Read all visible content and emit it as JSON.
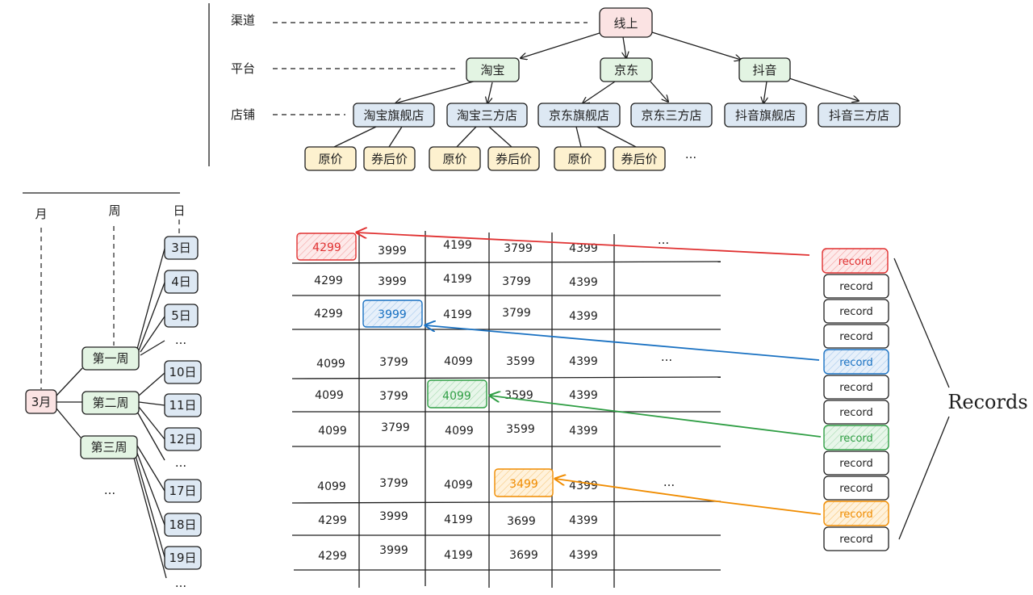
{
  "colors": {
    "root_fill": "#fbe3e3",
    "platform_fill": "#e3f4e3",
    "store_fill": "#dde8f3",
    "price_fill": "#fdf1cf",
    "month_fill": "#fbe3e3",
    "week_fill": "#e3f4e3",
    "day_fill": "#dde8f3",
    "red": "#e03131",
    "blue": "#1971c2",
    "green": "#2f9e44",
    "orange": "#f08c00",
    "ink": "#1e1e1e"
  },
  "top_tree": {
    "levels": [
      "渠道",
      "平台",
      "店铺"
    ],
    "root": "线上",
    "platforms": [
      "淘宝",
      "京东",
      "抖音"
    ],
    "stores": [
      "淘宝旗舰店",
      "淘宝三方店",
      "京东旗舰店",
      "京东三方店",
      "抖音旗舰店",
      "抖音三方店"
    ],
    "prices": [
      "原价",
      "券后价",
      "原价",
      "券后价",
      "原价",
      "券后价"
    ],
    "more": "..."
  },
  "time_tree": {
    "levels": [
      "月",
      "周",
      "日"
    ],
    "month": "3月",
    "weeks": [
      "第一周",
      "第二周",
      "第三周"
    ],
    "days": [
      "3日",
      "4日",
      "5日",
      "10日",
      "11日",
      "12日",
      "17日",
      "18日",
      "19日"
    ],
    "ellipsis": "...",
    "more": "..."
  },
  "grid": {
    "rows": [
      [
        "4299",
        "3999",
        "4199",
        "3799",
        "4399"
      ],
      [
        "4299",
        "3999",
        "4199",
        "3799",
        "4399"
      ],
      [
        "4299",
        "3999",
        "4199",
        "3799",
        "4399"
      ],
      [
        "4099",
        "3799",
        "4099",
        "3599",
        "4399"
      ],
      [
        "4099",
        "3799",
        "4099",
        "3599",
        "4399"
      ],
      [
        "4099",
        "3799",
        "4099",
        "3599",
        "4399"
      ],
      [
        "4099",
        "3799",
        "4099",
        "3499",
        "4399"
      ],
      [
        "4299",
        "3999",
        "4199",
        "3699",
        "4399"
      ],
      [
        "4299",
        "3999",
        "4199",
        "3699",
        "4399"
      ]
    ],
    "more": "..."
  },
  "records": {
    "items": [
      "record",
      "record",
      "record",
      "record",
      "record",
      "record",
      "record",
      "record",
      "record",
      "record",
      "record",
      "record"
    ],
    "title": "Records"
  }
}
